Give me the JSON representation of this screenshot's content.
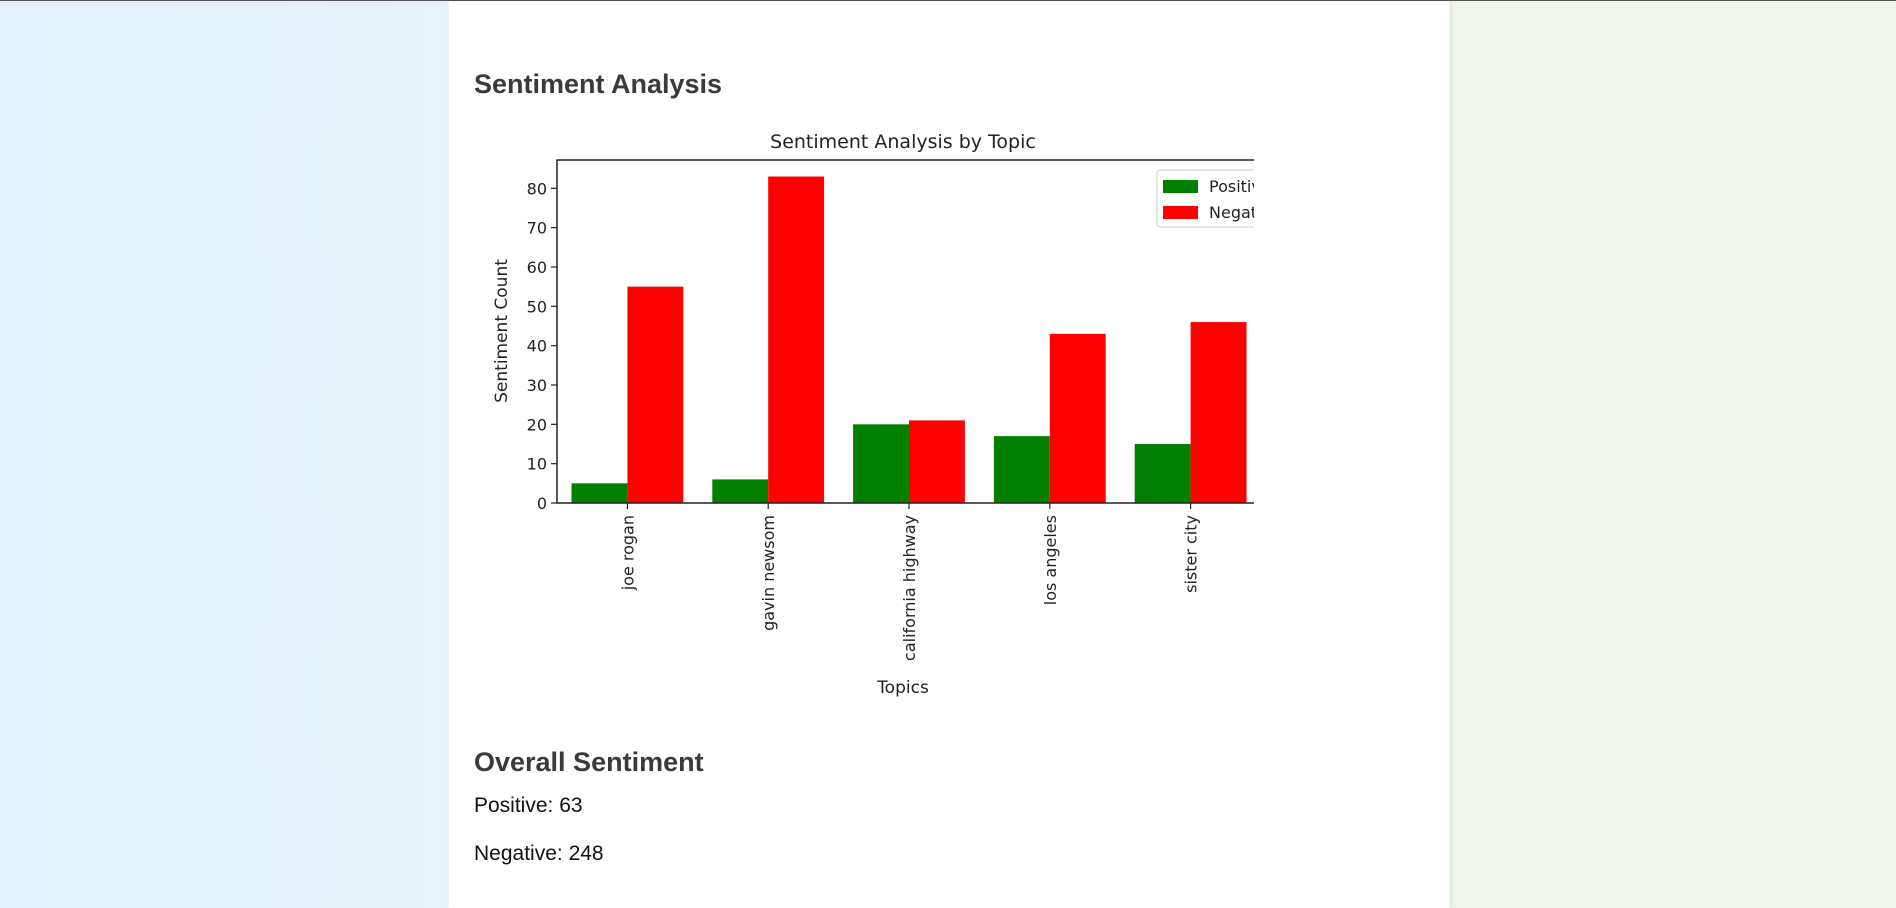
{
  "page": {
    "section_title": "Sentiment Analysis",
    "overall_title": "Overall Sentiment",
    "overall": {
      "positive_label": "Positive:",
      "positive_value": "63",
      "negative_label": "Negative:",
      "negative_value": "248"
    }
  },
  "colors": {
    "positive": "#008000",
    "negative": "#ff0000",
    "left_background": "#e1f0fa",
    "right_background": "#edf5ea"
  },
  "chart_data": {
    "type": "bar",
    "title": "Sentiment Analysis by Topic",
    "xlabel": "Topics",
    "ylabel": "Sentiment Count",
    "categories": [
      "joe rogan",
      "gavin newsom",
      "california highway",
      "los angeles",
      "sister city"
    ],
    "series": [
      {
        "name": "Positive",
        "values": [
          5,
          6,
          20,
          17,
          15
        ],
        "color": "#008000"
      },
      {
        "name": "Negative",
        "values": [
          55,
          83,
          21,
          43,
          46
        ],
        "color": "#ff0000"
      }
    ],
    "ylim": [
      0,
      87.2
    ],
    "yticks": [
      0,
      10,
      20,
      30,
      40,
      50,
      60,
      70,
      80
    ],
    "grid": false,
    "legend_position": "top-right",
    "xtick_rotation": "vertical"
  }
}
